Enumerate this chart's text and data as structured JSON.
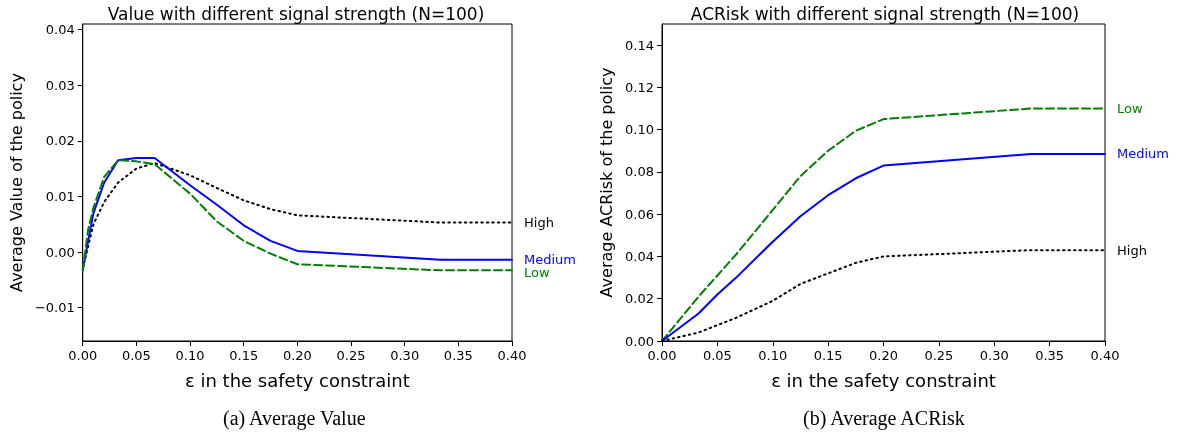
{
  "chart_data": [
    {
      "type": "line",
      "title": "Value with different signal strength (N=100)",
      "xlabel": "ε in the safety constraint",
      "ylabel": "Average Value of the policy",
      "annotations": [
        "(a) Average Value"
      ],
      "x": [
        0,
        0.005,
        0.01,
        0.02,
        0.033,
        0.05,
        0.067,
        0.1,
        0.125,
        0.15,
        0.175,
        0.2,
        0.333,
        0.4
      ],
      "series": [
        {
          "name": "High",
          "color": "#000000",
          "line_style": "dotted",
          "values": [
            -0.003,
            0.001,
            0.005,
            0.009,
            0.0125,
            0.015,
            0.016,
            0.0138,
            0.0115,
            0.0093,
            0.0077,
            0.0066,
            0.0053,
            0.0053
          ]
        },
        {
          "name": "Medium",
          "color": "#0000ff",
          "line_style": "solid",
          "values": [
            -0.0033,
            0.002,
            0.007,
            0.0125,
            0.0165,
            0.0169,
            0.0169,
            0.012,
            0.0085,
            0.0048,
            0.002,
            0.0002,
            -0.0014,
            -0.0014
          ]
        },
        {
          "name": "Low",
          "color": "#008000",
          "line_style": "dashed",
          "values": [
            -0.0033,
            0.004,
            0.008,
            0.0135,
            0.0165,
            0.0163,
            0.0158,
            0.0105,
            0.0055,
            0.002,
            -0.0003,
            -0.0022,
            -0.0033,
            -0.0033
          ]
        }
      ],
      "xlim": [
        0,
        0.4
      ],
      "xticks": [
        {
          "value": 0,
          "label": "0.00"
        },
        {
          "value": 0.05,
          "label": "0.05"
        },
        {
          "value": 0.1,
          "label": "0.10"
        },
        {
          "value": 0.15,
          "label": "0.15"
        },
        {
          "value": 0.2,
          "label": "0.20"
        },
        {
          "value": 0.25,
          "label": "0.25"
        },
        {
          "value": 0.3,
          "label": "0.30"
        },
        {
          "value": 0.35,
          "label": "0.35"
        },
        {
          "value": 0.4,
          "label": "0.40"
        }
      ],
      "ylim": [
        -0.016,
        0.041
      ],
      "yticks": [
        {
          "value": -0.01,
          "label": "−0.01"
        },
        {
          "value": 0,
          "label": "0.00"
        },
        0.01,
        0.02,
        0.03,
        0.04
      ],
      "grid": false,
      "legend": false,
      "marker": "none"
    },
    {
      "type": "line",
      "title": "ACRisk with different signal strength (N=100)",
      "xlabel": "ε in the safety constraint",
      "ylabel": "Average ACRisk of the policy",
      "annotations": [
        "(b) Average ACRisk"
      ],
      "x": [
        0,
        0.033,
        0.05,
        0.067,
        0.1,
        0.125,
        0.15,
        0.175,
        0.2,
        0.333,
        0.4
      ],
      "series": [
        {
          "name": "Low",
          "color": "#008000",
          "line_style": "dashed",
          "values": [
            0,
            0.021,
            0.031,
            0.041,
            0.062,
            0.078,
            0.09,
            0.0995,
            0.105,
            0.11,
            0.11
          ]
        },
        {
          "name": "Medium",
          "color": "#0000ff",
          "line_style": "solid",
          "values": [
            0,
            0.013,
            0.022,
            0.03,
            0.047,
            0.059,
            0.069,
            0.077,
            0.083,
            0.0885,
            0.0885
          ]
        },
        {
          "name": "High",
          "color": "#000000",
          "line_style": "dotted",
          "values": [
            0,
            0.004,
            0.0075,
            0.011,
            0.019,
            0.027,
            0.032,
            0.037,
            0.04,
            0.043,
            0.043
          ]
        }
      ],
      "xlim": [
        0,
        0.4
      ],
      "xticks": [
        {
          "value": 0,
          "label": "0.00"
        },
        {
          "value": 0.05,
          "label": "0.05"
        },
        {
          "value": 0.1,
          "label": "0.10"
        },
        {
          "value": 0.15,
          "label": "0.15"
        },
        {
          "value": 0.2,
          "label": "0.20"
        },
        {
          "value": 0.25,
          "label": "0.25"
        },
        {
          "value": 0.3,
          "label": "0.30"
        },
        {
          "value": 0.35,
          "label": "0.35"
        },
        {
          "value": 0.4,
          "label": "0.40"
        }
      ],
      "ylim": [
        0,
        0.15
      ],
      "yticks": [
        {
          "value": 0,
          "label": "0.00"
        },
        {
          "value": 0.02,
          "label": "0.02"
        },
        {
          "value": 0.04,
          "label": "0.04"
        },
        {
          "value": 0.06,
          "label": "0.06"
        },
        {
          "value": 0.08,
          "label": "0.08"
        },
        {
          "value": 0.1,
          "label": "0.10"
        },
        {
          "value": 0.12,
          "label": "0.12"
        },
        {
          "value": 0.14,
          "label": "0.14"
        }
      ],
      "grid": false,
      "legend": false,
      "marker": "none"
    }
  ]
}
